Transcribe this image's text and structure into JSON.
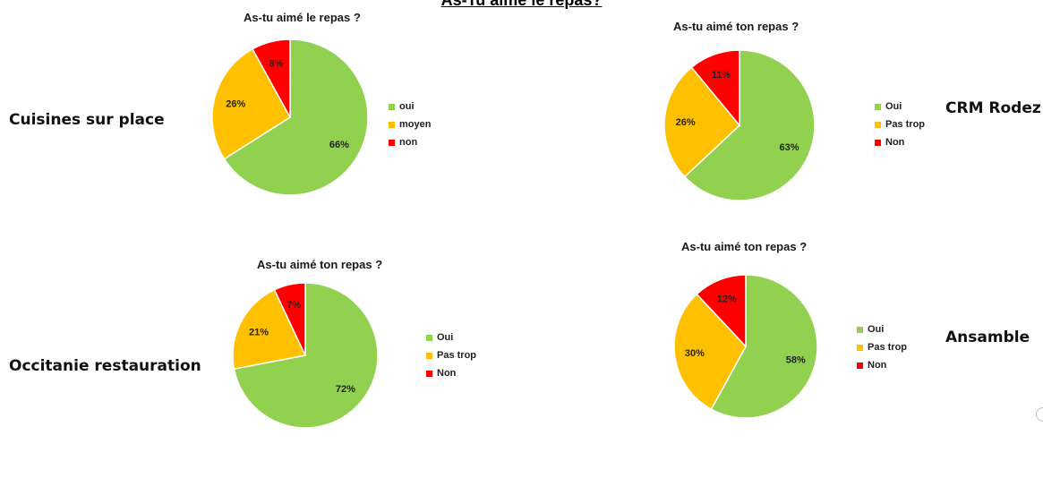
{
  "page": {
    "title": "As-Tu aimé le repas?"
  },
  "colors": {
    "green": "#92d050",
    "orange": "#ffc000",
    "red": "#ff0000"
  },
  "chart_data": [
    {
      "type": "pie",
      "label": "Cuisines sur place",
      "title": "As-tu aimé le repas ?",
      "legend_position": "right",
      "slices": [
        {
          "name": "oui",
          "value": 66,
          "label": "66%",
          "color": "#92d050"
        },
        {
          "name": "moyen",
          "value": 26,
          "label": "26%",
          "color": "#ffc000"
        },
        {
          "name": "non",
          "value": 8,
          "label": "8%",
          "color": "#ff0000"
        }
      ]
    },
    {
      "type": "pie",
      "label": "CRM Rodez",
      "title": "As-tu aimé ton repas ?",
      "legend_position": "right",
      "slices": [
        {
          "name": "Oui",
          "value": 63,
          "label": "63%",
          "color": "#92d050"
        },
        {
          "name": "Pas trop",
          "value": 26,
          "label": "26%",
          "color": "#ffc000"
        },
        {
          "name": "Non",
          "value": 11,
          "label": "11%",
          "color": "#ff0000"
        }
      ]
    },
    {
      "type": "pie",
      "label": "Occitanie restauration",
      "title": "As-tu aimé ton repas ?",
      "legend_position": "right",
      "slices": [
        {
          "name": "Oui",
          "value": 72,
          "label": "72%",
          "color": "#92d050"
        },
        {
          "name": "Pas trop",
          "value": 21,
          "label": "21%",
          "color": "#ffc000"
        },
        {
          "name": "Non",
          "value": 7,
          "label": "7%",
          "color": "#ff0000"
        }
      ]
    },
    {
      "type": "pie",
      "label": "Ansamble",
      "title": "As-tu aimé ton repas ?",
      "legend_position": "right",
      "slices": [
        {
          "name": "Oui",
          "value": 58,
          "label": "58%",
          "color": "#92d050"
        },
        {
          "name": "Pas trop",
          "value": 30,
          "label": "30%",
          "color": "#ffc000"
        },
        {
          "name": "Non",
          "value": 12,
          "label": "12%",
          "color": "#ff0000"
        }
      ]
    }
  ]
}
